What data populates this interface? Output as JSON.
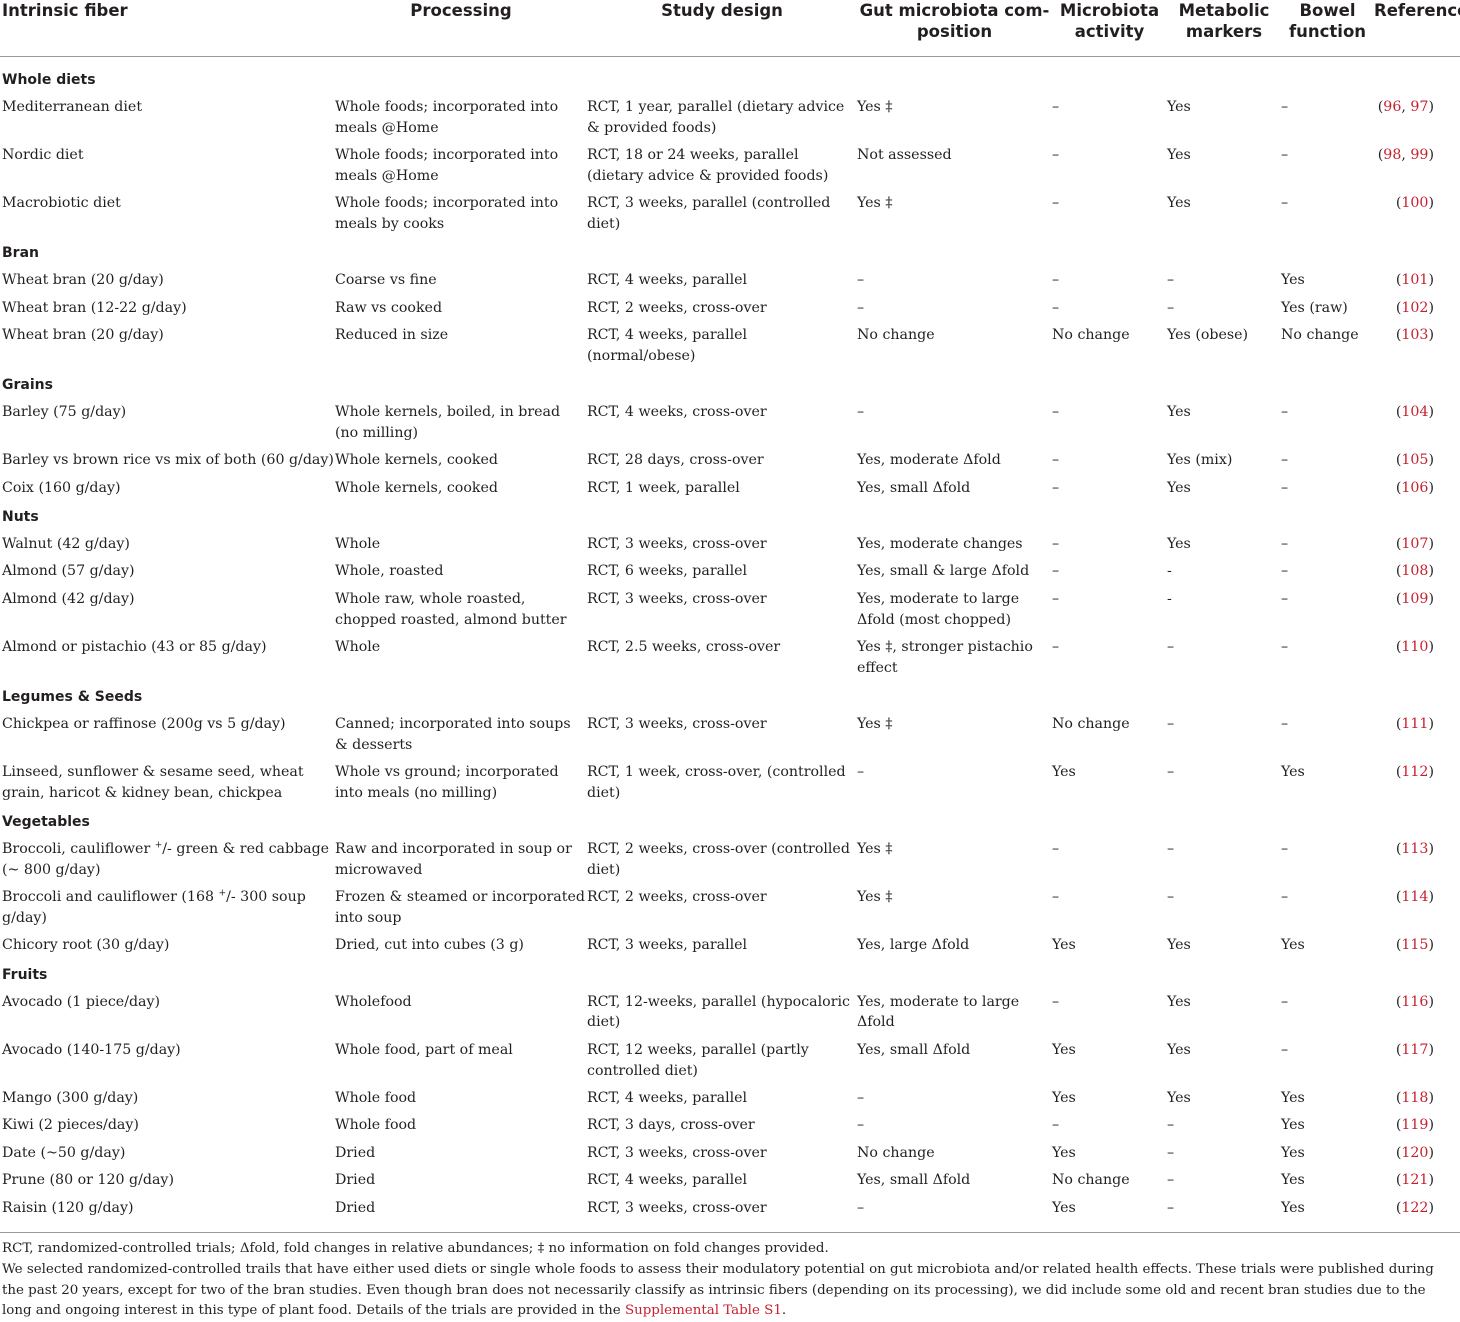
{
  "headers": [
    "Intrinsic fiber",
    "Processing",
    "Study design",
    "Gut microbiota com-\nposition",
    "Microbiota activity",
    "Metabolic markers",
    "Bowel function",
    "Reference"
  ],
  "sections": [
    {
      "title": "Whole diets",
      "rows": [
        {
          "fiber": "Mediterranean diet",
          "processing": "Whole foods; incorporated into meals @Home",
          "design": "RCT, 1 year, parallel (dietary advice & provided foods)",
          "gut": "Yes ‡",
          "activity": "–",
          "metabolic": "Yes",
          "bowel": "–",
          "ref_open": "(",
          "refs": [
            "96",
            "97"
          ],
          "ref_close": ")"
        },
        {
          "fiber": "Nordic diet",
          "processing": "Whole foods; incorporated into meals @Home",
          "design": "RCT, 18 or 24 weeks, parallel (dietary advice & provided foods)",
          "gut": "Not assessed",
          "activity": "–",
          "metabolic": "Yes",
          "bowel": "–",
          "ref_open": "(",
          "refs": [
            "98",
            "99"
          ],
          "ref_close": ")"
        },
        {
          "fiber": "Macrobiotic diet",
          "processing": "Whole foods; incorporated into meals by cooks",
          "design": "RCT, 3 weeks, parallel (controlled diet)",
          "gut": "Yes ‡",
          "activity": "–",
          "metabolic": "Yes",
          "bowel": "–",
          "ref_open": "(",
          "refs": [
            "100"
          ],
          "ref_close": ")"
        }
      ]
    },
    {
      "title": "Bran",
      "rows": [
        {
          "fiber": "Wheat bran (20 g/day)",
          "processing": "Coarse vs fine",
          "design": "RCT, 4 weeks, parallel",
          "gut": "–",
          "activity": "–",
          "metabolic": "–",
          "bowel": "Yes",
          "ref_open": "(",
          "refs": [
            "101"
          ],
          "ref_close": ")"
        },
        {
          "fiber": "Wheat bran (12-22 g/day)",
          "processing": "Raw vs cooked",
          "design": "RCT, 2 weeks, cross-over",
          "gut": "–",
          "activity": "–",
          "metabolic": "–",
          "bowel": "Yes (raw)",
          "ref_open": "(",
          "refs": [
            "102"
          ],
          "ref_close": ")"
        },
        {
          "fiber": "Wheat bran (20 g/day)",
          "processing": "Reduced in size",
          "design": "RCT, 4 weeks, parallel (normal/obese)",
          "gut": "No change",
          "activity": "No change",
          "metabolic": "Yes (obese)",
          "bowel": "No change",
          "ref_open": "(",
          "refs": [
            "103"
          ],
          "ref_close": ")"
        }
      ]
    },
    {
      "title": "Grains",
      "rows": [
        {
          "fiber": "Barley (75 g/day)",
          "processing": "Whole kernels, boiled, in bread (no milling)",
          "design": "RCT, 4 weeks, cross-over",
          "gut": "–",
          "activity": "–",
          "metabolic": "Yes",
          "bowel": "–",
          "ref_open": "(",
          "refs": [
            "104"
          ],
          "ref_close": ")"
        },
        {
          "fiber": "Barley vs brown rice vs mix of both (60 g/day)",
          "processing": "Whole kernels, cooked",
          "design": "RCT, 28 days, cross-over",
          "gut": "Yes, moderate Δfold",
          "activity": "–",
          "metabolic": "Yes (mix)",
          "bowel": "–",
          "ref_open": "(",
          "refs": [
            "105"
          ],
          "ref_close": ")"
        },
        {
          "fiber": "Coix (160 g/day)",
          "processing": "Whole kernels, cooked",
          "design": "RCT, 1 week, parallel",
          "gut": "Yes, small Δfold",
          "activity": "–",
          "metabolic": "Yes",
          "bowel": "–",
          "ref_open": "(",
          "refs": [
            "106"
          ],
          "ref_close": ")"
        }
      ]
    },
    {
      "title": "Nuts",
      "rows": [
        {
          "fiber": "Walnut (42 g/day)",
          "processing": "Whole",
          "design": "RCT, 3 weeks, cross-over",
          "gut": "Yes, moderate changes",
          "activity": "–",
          "metabolic": "Yes",
          "bowel": "–",
          "ref_open": "(",
          "refs": [
            "107"
          ],
          "ref_close": ")"
        },
        {
          "fiber": "Almond (57 g/day)",
          "processing": "Whole, roasted",
          "design": "RCT, 6 weeks, parallel",
          "gut": "Yes, small & large Δfold",
          "activity": "–",
          "metabolic": "-",
          "bowel": "–",
          "ref_open": "(",
          "refs": [
            "108"
          ],
          "ref_close": ")"
        },
        {
          "fiber": "Almond (42 g/day)",
          "processing": "Whole raw, whole roasted, chopped roasted, almond butter",
          "design": "RCT, 3 weeks, cross-over",
          "gut": "Yes, moderate to large Δfold (most chopped)",
          "activity": "–",
          "metabolic": "-",
          "bowel": "–",
          "ref_open": "(",
          "refs": [
            "109"
          ],
          "ref_close": ")"
        },
        {
          "fiber": "Almond or pistachio (43 or 85 g/day)",
          "processing": "Whole",
          "design": "RCT, 2.5 weeks, cross-over",
          "gut": "Yes ‡, stronger pistachio effect",
          "activity": "–",
          "metabolic": "–",
          "bowel": "–",
          "ref_open": "(",
          "refs": [
            "110"
          ],
          "ref_close": ")"
        }
      ]
    },
    {
      "title": "Legumes & Seeds",
      "rows": [
        {
          "fiber": "Chickpea or raffinose (200g vs 5 g/day)",
          "processing": "Canned; incorporated into soups & desserts",
          "design": "RCT, 3 weeks, cross-over",
          "gut": "Yes ‡",
          "activity": "No change",
          "metabolic": "–",
          "bowel": "–",
          "ref_open": "(",
          "refs": [
            "111"
          ],
          "ref_close": ")"
        },
        {
          "fiber": "Linseed, sunflower & sesame seed, wheat grain, haricot & kidney bean, chickpea",
          "processing": "Whole vs ground; incorporated into meals (no milling)",
          "design": "RCT, 1 week, cross-over, (controlled diet)",
          "gut": "–",
          "activity": "Yes",
          "metabolic": "–",
          "bowel": "Yes",
          "ref_open": "(",
          "refs": [
            "112"
          ],
          "ref_close": ")"
        }
      ]
    },
    {
      "title": "Vegetables",
      "rows": [
        {
          "fiber_a": "Broccoli, cauliflower ",
          "fiber_sup": "+",
          "fiber_b": "/- green & red cabbage (~ 800 g/day)",
          "processing": "Raw and incorporated in soup or microwaved",
          "design": "RCT, 2 weeks, cross-over (controlled diet)",
          "gut": "Yes ‡",
          "activity": "–",
          "metabolic": "–",
          "bowel": "–",
          "ref_open": "(",
          "refs": [
            "113"
          ],
          "ref_close": ")"
        },
        {
          "fiber_a": "Broccoli and cauliflower (168 ",
          "fiber_sup": "+",
          "fiber_b": "/- 300 soup g/day)",
          "processing": "Frozen & steamed or incorporated into soup",
          "design": "RCT, 2 weeks, cross-over",
          "gut": "Yes ‡",
          "activity": "–",
          "metabolic": "–",
          "bowel": "–",
          "ref_open": "(",
          "refs": [
            "114"
          ],
          "ref_close": ")"
        },
        {
          "fiber": "Chicory root (30 g/day)",
          "processing": "Dried, cut into cubes (3 g)",
          "design": "RCT, 3 weeks, parallel",
          "gut": "Yes, large Δfold",
          "activity": "Yes",
          "metabolic": "Yes",
          "bowel": "Yes",
          "ref_open": "(",
          "refs": [
            "115"
          ],
          "ref_close": ")"
        }
      ]
    },
    {
      "title": "Fruits",
      "rows": [
        {
          "fiber": "Avocado (1 piece/day)",
          "processing": "Wholefood",
          "design": "RCT, 12-weeks, parallel (hypocaloric diet)",
          "gut": "Yes, moderate to large Δfold",
          "activity": "–",
          "metabolic": "Yes",
          "bowel": "–",
          "ref_open": "(",
          "refs": [
            "116"
          ],
          "ref_close": ")"
        },
        {
          "fiber": "Avocado (140-175 g/day)",
          "processing": "Whole food, part of meal",
          "design": "RCT, 12 weeks, parallel (partly controlled diet)",
          "gut": "Yes, small Δfold",
          "activity": "Yes",
          "metabolic": "Yes",
          "bowel": "–",
          "ref_open": "(",
          "refs": [
            "117"
          ],
          "ref_close": ")"
        },
        {
          "fiber": "Mango (300 g/day)",
          "processing": "Whole food",
          "design": "RCT, 4 weeks, parallel",
          "gut": "–",
          "activity": "Yes",
          "metabolic": "Yes",
          "bowel": "Yes",
          "ref_open": "(",
          "refs": [
            "118"
          ],
          "ref_close": ")"
        },
        {
          "fiber": "Kiwi (2 pieces/day)",
          "processing": "Whole food",
          "design": "RCT, 3 days, cross-over",
          "gut": "–",
          "activity": "–",
          "metabolic": "–",
          "bowel": "Yes",
          "ref_open": "(",
          "refs": [
            "119"
          ],
          "ref_close": ")"
        },
        {
          "fiber": "Date (~50 g/day)",
          "processing": "Dried",
          "design": "RCT, 3 weeks, cross-over",
          "gut": "No change",
          "activity": "Yes",
          "metabolic": "–",
          "bowel": "Yes",
          "ref_open": "(",
          "refs": [
            "120"
          ],
          "ref_close": ")"
        },
        {
          "fiber": "Prune (80 or 120 g/day)",
          "processing": "Dried",
          "design": "RCT, 4 weeks, parallel",
          "gut": "Yes, small Δfold",
          "activity": "No change",
          "metabolic": "–",
          "bowel": "Yes",
          "ref_open": "(",
          "refs": [
            "121"
          ],
          "ref_close": ")"
        },
        {
          "fiber": "Raisin (120 g/day)",
          "processing": "Dried",
          "design": "RCT, 3 weeks, cross-over",
          "gut": "–",
          "activity": "Yes",
          "metabolic": "–",
          "bowel": "Yes",
          "ref_open": "(",
          "refs": [
            "122"
          ],
          "ref_close": ")"
        }
      ]
    }
  ],
  "footnotes": {
    "abbrev": "RCT, randomized-controlled trials; Δfold, fold changes in relative abundances; ‡ no information on fold changes provided.",
    "note": "We selected randomized-controlled trails that have either used diets or single whole foods to assess their modulatory potential on gut microbiota and/or related health effects. These trials were published during the past 20 years, except for two of the bran studies. Even though bran does not necessarily classify as intrinsic fibers (depending on its processing), we did include some old and recent bran studies due to the long and ongoing interest in this type of plant food. Details of the trials are provided in the",
    "link": "Supplemental Table S1",
    "end": "."
  },
  "colors": {
    "text": "#231f20",
    "reference_link": "#c8202f",
    "rule": "#999999"
  }
}
